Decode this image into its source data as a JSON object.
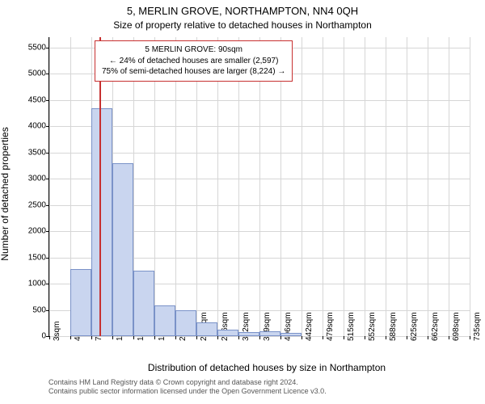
{
  "title_main": "5, MERLIN GROVE, NORTHAMPTON, NN4 0QH",
  "title_sub": "Size of property relative to detached houses in Northampton",
  "ylabel": "Number of detached properties",
  "xlabel": "Distribution of detached houses by size in Northampton",
  "attribution_line1": "Contains HM Land Registry data © Crown copyright and database right 2024.",
  "attribution_line2": "Contains public sector information licensed under the Open Government Licence v3.0.",
  "chart": {
    "type": "histogram",
    "background_color": "#ffffff",
    "grid_color": "#d6d6d6",
    "bar_fill": "#c9d5ef",
    "bar_stroke": "#7a92c8",
    "ylim": [
      0,
      5700
    ],
    "ytick_step": 500,
    "yticks": [
      0,
      500,
      1000,
      1500,
      2000,
      2500,
      3000,
      3500,
      4000,
      4500,
      5000,
      5500
    ],
    "xticks": [
      3,
      40,
      76,
      113,
      149,
      186,
      223,
      259,
      296,
      332,
      369,
      406,
      442,
      479,
      515,
      552,
      588,
      625,
      662,
      698,
      735
    ],
    "xtick_unit": "sqm",
    "bars": [
      {
        "x0": 3,
        "x1": 40,
        "value": 0
      },
      {
        "x0": 40,
        "x1": 76,
        "value": 1280
      },
      {
        "x0": 76,
        "x1": 113,
        "value": 4350
      },
      {
        "x0": 113,
        "x1": 149,
        "value": 3300
      },
      {
        "x0": 149,
        "x1": 186,
        "value": 1250
      },
      {
        "x0": 186,
        "x1": 223,
        "value": 580
      },
      {
        "x0": 223,
        "x1": 259,
        "value": 500
      },
      {
        "x0": 259,
        "x1": 296,
        "value": 260
      },
      {
        "x0": 296,
        "x1": 332,
        "value": 120
      },
      {
        "x0": 332,
        "x1": 369,
        "value": 80
      },
      {
        "x0": 369,
        "x1": 406,
        "value": 90
      },
      {
        "x0": 406,
        "x1": 442,
        "value": 55
      },
      {
        "x0": 442,
        "x1": 479,
        "value": 0
      },
      {
        "x0": 479,
        "x1": 515,
        "value": 0
      },
      {
        "x0": 515,
        "x1": 552,
        "value": 0
      },
      {
        "x0": 552,
        "x1": 588,
        "value": 0
      },
      {
        "x0": 588,
        "x1": 625,
        "value": 0
      },
      {
        "x0": 625,
        "x1": 662,
        "value": 0
      },
      {
        "x0": 662,
        "x1": 698,
        "value": 0
      },
      {
        "x0": 698,
        "x1": 735,
        "value": 0
      }
    ],
    "indicator": {
      "value_sqm": 90,
      "line_color": "#c73030"
    },
    "annotation": {
      "line1": "5 MERLIN GROVE: 90sqm",
      "line2": "← 24% of detached houses are smaller (2,597)",
      "line3": "75% of semi-detached houses are larger (8,224) →",
      "border_color": "#c73030",
      "fontsize": 10
    }
  }
}
